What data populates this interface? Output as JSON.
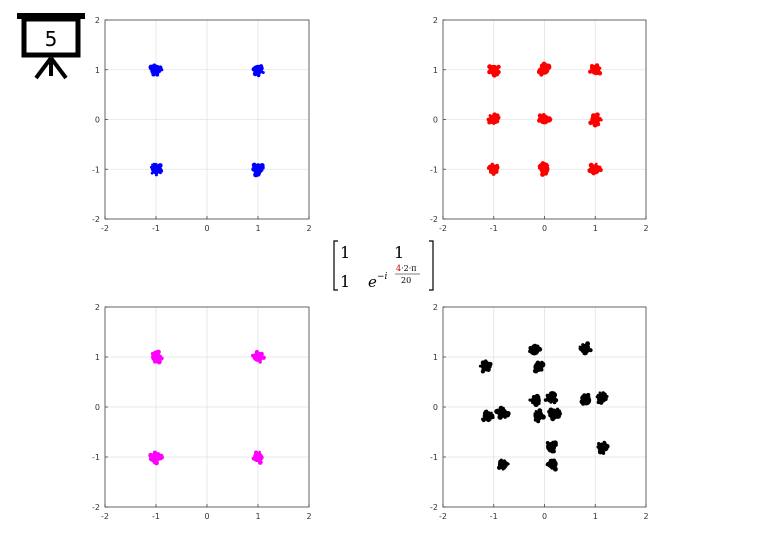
{
  "slide": {
    "number": "5",
    "icon": "presentation-board-icon"
  },
  "matrix": {
    "r1c1": "1",
    "r1c2": "1",
    "r2c1": "1",
    "base": "e",
    "exp_prefix": "−i",
    "numerator_highlight": "4",
    "numerator_rest": "·2·π",
    "denominator": "20",
    "highlight_color": "#c00000"
  },
  "chart_data": [
    {
      "type": "scatter",
      "title": "",
      "xlabel": "",
      "ylabel": "",
      "xlim": [
        -2,
        2
      ],
      "ylim": [
        -2,
        2
      ],
      "xticks": [
        "-2",
        "-1",
        "0",
        "1",
        "2"
      ],
      "yticks": [
        "-2",
        "-1",
        "0",
        "1",
        "2"
      ],
      "grid": true,
      "series": [
        {
          "color": "#0000ff",
          "points": [
            [
              -1,
              1
            ],
            [
              1,
              1
            ],
            [
              -1,
              -1
            ],
            [
              1,
              -1
            ]
          ]
        }
      ]
    },
    {
      "type": "scatter",
      "title": "",
      "xlabel": "",
      "ylabel": "",
      "xlim": [
        -2,
        2
      ],
      "ylim": [
        -2,
        2
      ],
      "xticks": [
        "-2",
        "-1",
        "0",
        "1",
        "2"
      ],
      "yticks": [
        "-2",
        "-1",
        "0",
        "1",
        "2"
      ],
      "grid": true,
      "series": [
        {
          "color": "#ff0000",
          "points": [
            [
              -1,
              1
            ],
            [
              0,
              1
            ],
            [
              1,
              1
            ],
            [
              -1,
              0
            ],
            [
              0,
              0
            ],
            [
              1,
              0
            ],
            [
              -1,
              -1
            ],
            [
              0,
              -1
            ],
            [
              1,
              -1
            ]
          ]
        }
      ]
    },
    {
      "type": "scatter",
      "title": "",
      "xlabel": "",
      "ylabel": "",
      "xlim": [
        -2,
        2
      ],
      "ylim": [
        -2,
        2
      ],
      "xticks": [
        "-2",
        "-1",
        "0",
        "1",
        "2"
      ],
      "yticks": [
        "-2",
        "-1",
        "0",
        "1",
        "2"
      ],
      "grid": true,
      "series": [
        {
          "color": "#ff00ff",
          "points": [
            [
              -1,
              1
            ],
            [
              1,
              1
            ],
            [
              -1,
              -1
            ],
            [
              1,
              -1
            ]
          ]
        }
      ]
    },
    {
      "type": "scatter",
      "title": "",
      "xlabel": "",
      "ylabel": "",
      "xlim": [
        -2,
        2
      ],
      "ylim": [
        -2,
        2
      ],
      "xticks": [
        "-2",
        "-1",
        "0",
        "1",
        "2"
      ],
      "yticks": [
        "-2",
        "-1",
        "0",
        "1",
        "2"
      ],
      "grid": true,
      "series": [
        {
          "color": "#000000",
          "points": [
            [
              -1.15,
              0.81
            ],
            [
              -0.2,
              1.13
            ],
            [
              0.8,
              1.16
            ],
            [
              -0.12,
              0.8
            ],
            [
              -1.12,
              -0.18
            ],
            [
              -0.83,
              -0.12
            ],
            [
              -0.17,
              0.13
            ],
            [
              0.13,
              0.18
            ],
            [
              0.82,
              0.13
            ],
            [
              1.13,
              0.18
            ],
            [
              -0.12,
              -0.17
            ],
            [
              0.18,
              -0.13
            ],
            [
              -0.82,
              -1.15
            ],
            [
              0.13,
              -0.8
            ],
            [
              0.16,
              -1.14
            ],
            [
              1.14,
              -0.81
            ]
          ]
        }
      ]
    }
  ]
}
